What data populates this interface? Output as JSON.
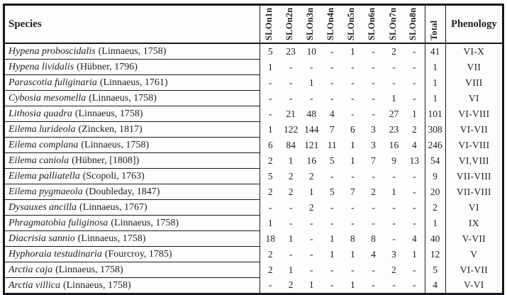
{
  "colors": {
    "ink": "#1e1e26",
    "border": "#16161c",
    "background": "#fdfdfb"
  },
  "table": {
    "columns": {
      "species_label": "Species",
      "site_labels": [
        "SLOn1n",
        "SLOn2n",
        "SLOn3n",
        "SLOn4n",
        "SLOn5n",
        "SLOn6n",
        "SLOn7n",
        "SLOn8n"
      ],
      "total_label": "Total",
      "phenology_label": "Phenology"
    },
    "rows": [
      {
        "species": "Hypena proboscidalis",
        "authority": "(Linnaeus, 1758)",
        "counts": [
          "5",
          "23",
          "10",
          "-",
          "1",
          "-",
          "2",
          "-"
        ],
        "total": "41",
        "phenology": "VI-X"
      },
      {
        "species": "Hypena lividalis",
        "authority": "(Hübner, 1796)",
        "counts": [
          "1",
          "-",
          "-",
          "-",
          "-",
          "-",
          "-",
          "-"
        ],
        "total": "1",
        "phenology": "VII"
      },
      {
        "species": "Parascotia fuliginaria",
        "authority": "(Linnaeus, 1761)",
        "counts": [
          "-",
          "-",
          "1",
          "-",
          "-",
          "-",
          "-",
          "-"
        ],
        "total": "1",
        "phenology": "VIII"
      },
      {
        "species": "Cybosia mesomella",
        "authority": "(Linnaeus, 1758)",
        "counts": [
          "-",
          "-",
          "-",
          "-",
          "-",
          "-",
          "1",
          "-"
        ],
        "total": "1",
        "phenology": "VI"
      },
      {
        "species": "Lithosia quadra",
        "authority": "(Linnaeus, 1758)",
        "counts": [
          "-",
          "21",
          "48",
          "4",
          "-",
          "-",
          "27",
          "1"
        ],
        "total": "101",
        "phenology": "VI-VIII"
      },
      {
        "species": "Eilema lurideola",
        "authority": "(Zincken, 1817)",
        "counts": [
          "1",
          "122",
          "144",
          "7",
          "6",
          "3",
          "23",
          "2"
        ],
        "total": "308",
        "phenology": "VI-VII"
      },
      {
        "species": "Eilema complana",
        "authority": "(Linnaeus, 1758)",
        "counts": [
          "6",
          "84",
          "121",
          "11",
          "1",
          "3",
          "16",
          "4"
        ],
        "total": "246",
        "phenology": "VI-VIII"
      },
      {
        "species": "Eilema caniola",
        "authority": "(Hübner, [1808])",
        "counts": [
          "2",
          "1",
          "16",
          "5",
          "1",
          "7",
          "9",
          "13"
        ],
        "total": "54",
        "phenology": "VI,VIII"
      },
      {
        "species": "Eilema palliatella",
        "authority": "(Scopoli, 1763)",
        "counts": [
          "5",
          "2",
          "2",
          "-",
          "-",
          "-",
          "-",
          "-"
        ],
        "total": "9",
        "phenology": "VII-VIII"
      },
      {
        "species": "Eilema pygmaeola",
        "authority": "(Doubleday, 1847)",
        "counts": [
          "2",
          "2",
          "1",
          "5",
          "7",
          "2",
          "1",
          "-"
        ],
        "total": "20",
        "phenology": "VII-VIII"
      },
      {
        "species": "Dysauxes ancilla",
        "authority": "(Linnaeus, 1767)",
        "counts": [
          "-",
          "-",
          "2",
          "-",
          "-",
          "-",
          "-",
          "-"
        ],
        "total": "2",
        "phenology": "VI"
      },
      {
        "species": "Phragmatobia fuliginosa",
        "authority": "(Linnaeus, 1758)",
        "counts": [
          "1",
          "-",
          "-",
          "-",
          "-",
          "-",
          "-",
          "-"
        ],
        "total": "1",
        "phenology": "IX"
      },
      {
        "species": "Diacrisia sannio",
        "authority": "(Linnaeus, 1758)",
        "counts": [
          "18",
          "1",
          "-",
          "1",
          "8",
          "8",
          "-",
          "4"
        ],
        "total": "40",
        "phenology": "V-VII"
      },
      {
        "species": "Hyphoraia testudinaria",
        "authority": "(Fourcroy, 1785)",
        "counts": [
          "2",
          "-",
          "-",
          "1",
          "1",
          "4",
          "3",
          "1"
        ],
        "total": "12",
        "phenology": "V"
      },
      {
        "species": "Arctia caja",
        "authority": "(Linnaeus, 1758)",
        "counts": [
          "2",
          "1",
          "-",
          "-",
          "-",
          "-",
          "2",
          "-"
        ],
        "total": "5",
        "phenology": "VI-VII"
      },
      {
        "species": "Arctia villica",
        "authority": "(Linnaeus, 1758)",
        "counts": [
          "-",
          "2",
          "1",
          "-",
          "1",
          "-",
          "-",
          "-"
        ],
        "total": "4",
        "phenology": "V-VI"
      }
    ]
  }
}
